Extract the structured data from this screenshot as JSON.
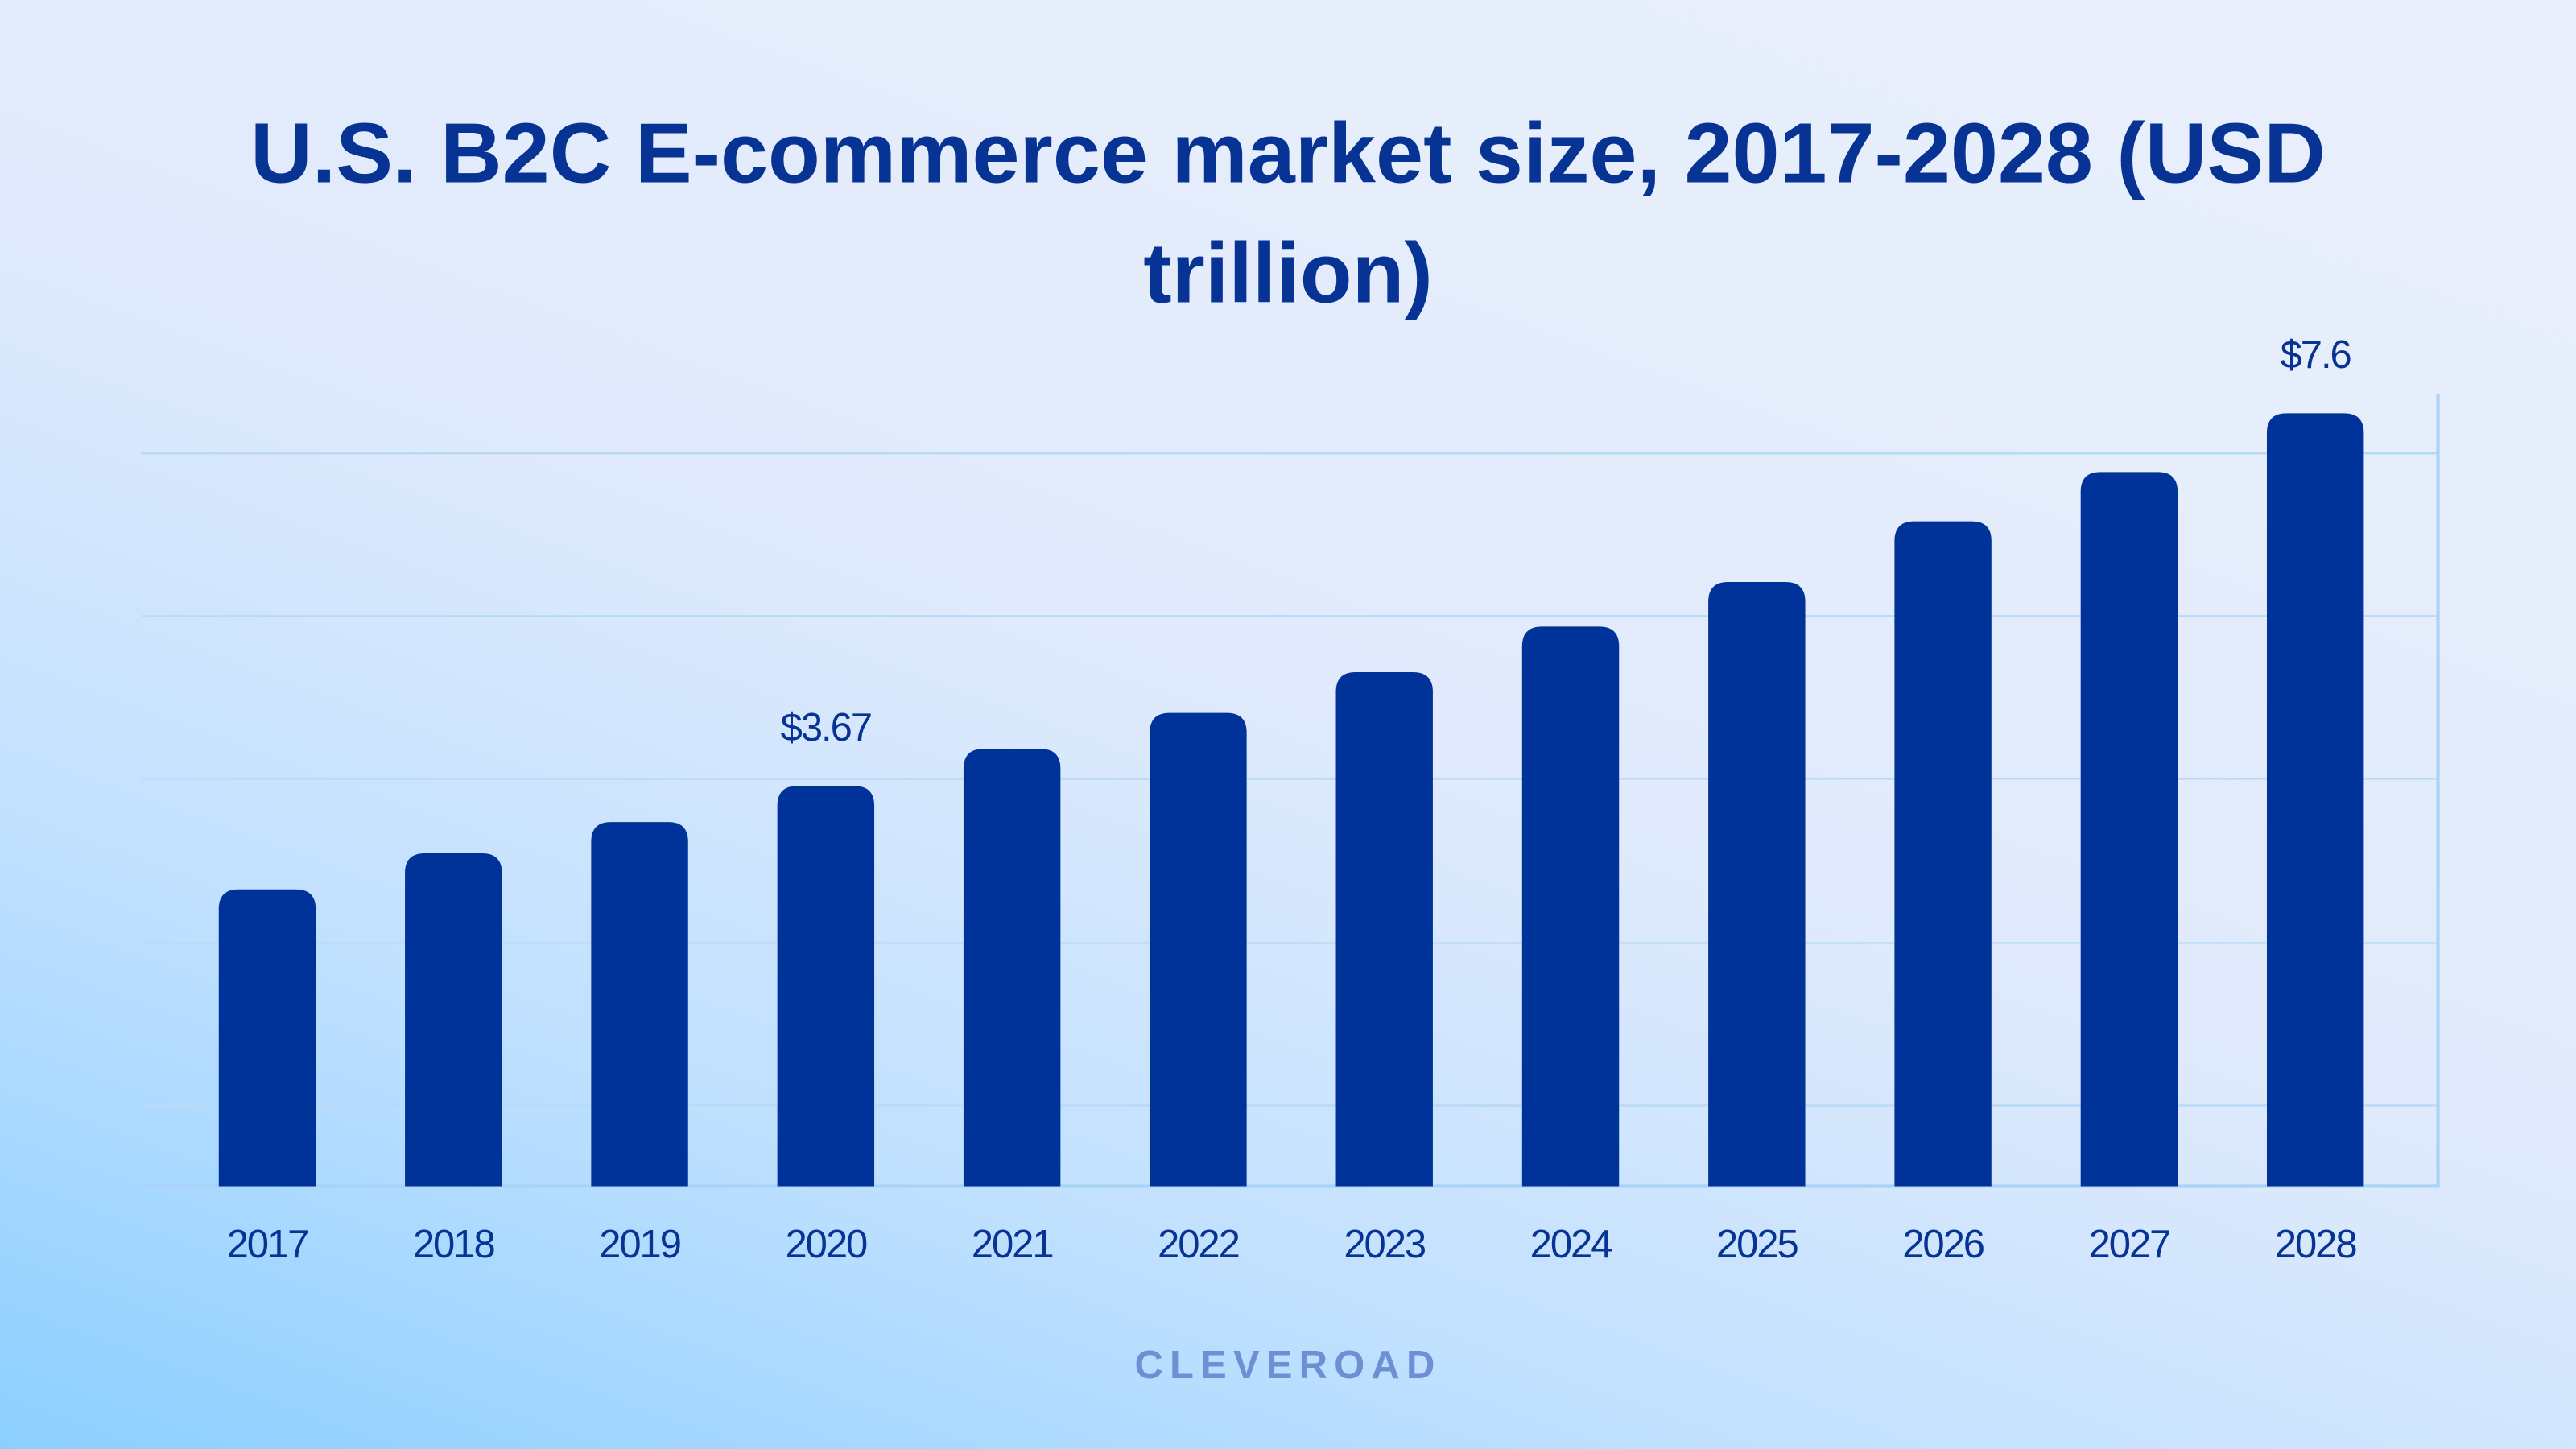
{
  "chart_data": {
    "type": "bar",
    "title": "U.S. B2C E-commerce market size, 2017-2028 (USD trillion)",
    "categories": [
      "2017",
      "2018",
      "2019",
      "2020",
      "2021",
      "2022",
      "2023",
      "2024",
      "2025",
      "2026",
      "2027",
      "2028"
    ],
    "values": [
      2.58,
      2.96,
      3.29,
      3.67,
      4.06,
      4.44,
      4.87,
      5.35,
      5.82,
      6.46,
      6.98,
      7.6
    ],
    "value_labels": [
      null,
      null,
      null,
      "$3.67",
      null,
      null,
      null,
      null,
      null,
      null,
      null,
      "$7.6"
    ],
    "color": "#003399",
    "ylim": [
      -0.55,
      7.8
    ]
  },
  "footer": "CLEVEROAD"
}
